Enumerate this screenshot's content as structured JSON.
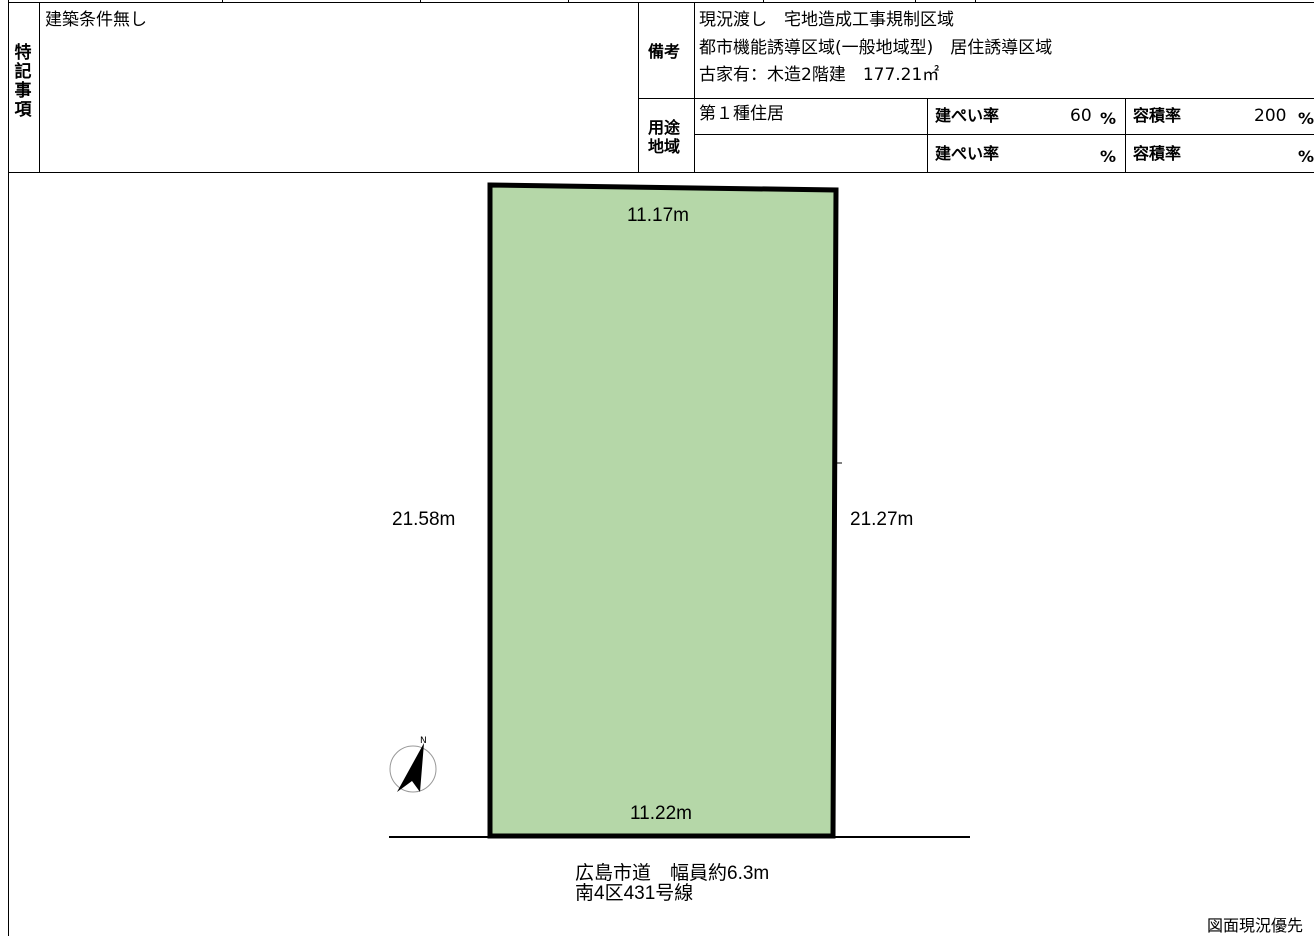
{
  "special_notes": {
    "label": "特記事項",
    "text": "建築条件無し"
  },
  "remarks": {
    "label": "備考",
    "lines": [
      "現況渡し　宅地造成工事規制区域",
      "都市機能誘導区域(一般地域型)　居住誘導区域",
      "古家有：木造2階建　177.21㎡"
    ]
  },
  "zoning": {
    "label_line1": "用途",
    "label_line2": "地域",
    "rows": [
      {
        "zone": "第１種住居",
        "bcr_label": "建ぺい率",
        "bcr_value": "60",
        "bcr_unit": "%",
        "far_label": "容積率",
        "far_value": "200",
        "far_unit": "%"
      },
      {
        "zone": "",
        "bcr_label": "建ぺい率",
        "bcr_value": "",
        "bcr_unit": "%",
        "far_label": "容積率",
        "far_value": "",
        "far_unit": "%"
      }
    ]
  },
  "plot": {
    "fill_color": "#b5d7a8",
    "top": "11.17m",
    "bottom": "11.22m",
    "left": "21.58m",
    "right": "21.27m",
    "compass_letter": "N"
  },
  "road": {
    "line1": "広島市道　幅員約6.3m",
    "line2": "南4区431号線"
  },
  "footer_note": "図面現況優先"
}
